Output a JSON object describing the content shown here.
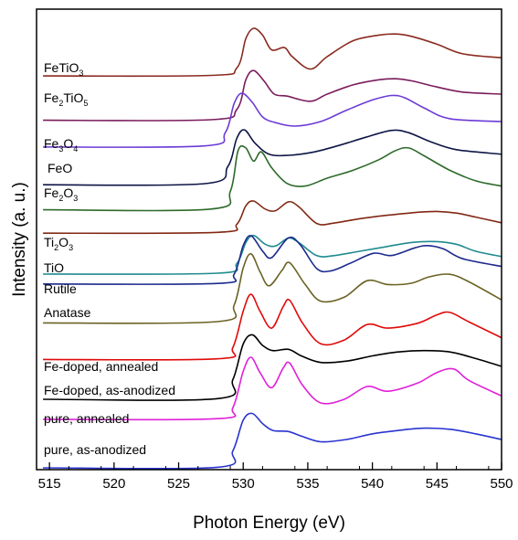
{
  "chart_data": {
    "type": "line",
    "title": "",
    "xlabel": "Photon Energy (eV)",
    "ylabel": "Intensity (a. u.)",
    "xlim": [
      514,
      550
    ],
    "x_ticks": [
      "515",
      "520",
      "525",
      "530",
      "535",
      "540",
      "545",
      "550"
    ],
    "x_tick_values": [
      515,
      520,
      525,
      530,
      535,
      540,
      545,
      550
    ],
    "y_ticks": "none",
    "grid": false,
    "legend": "inline labels at left of each curve",
    "series": [
      {
        "name": "FeTiO3",
        "label_base": "FeTiO",
        "label_sub": "3",
        "label_tail": "",
        "color": "#8a2a20",
        "x": [
          514.5,
          527.5,
          529.5,
          530.2,
          530.8,
          531.5,
          532.2,
          533.2,
          533.8,
          535.2,
          536.5,
          538.5,
          540.5,
          541.8,
          543,
          545,
          547,
          550
        ],
        "y": [
          0.16,
          0.17,
          0.3,
          0.82,
          1.0,
          0.88,
          0.62,
          0.66,
          0.5,
          0.28,
          0.5,
          0.78,
          0.88,
          0.9,
          0.86,
          0.72,
          0.55,
          0.48
        ]
      },
      {
        "name": "Fe2TiO5",
        "label_base": "Fe",
        "label_sub": "2",
        "label_tail": "TiO5",
        "color": "#7a1c5c",
        "x": [
          514.5,
          527.5,
          529.5,
          530.2,
          530.8,
          531.6,
          532.4,
          533.4,
          535.2,
          536.5,
          538.5,
          540.5,
          541.8,
          543,
          545,
          547,
          550
        ],
        "y": [
          -0.01,
          0.0,
          0.2,
          0.78,
          0.96,
          0.76,
          0.5,
          0.46,
          0.36,
          0.5,
          0.68,
          0.78,
          0.8,
          0.76,
          0.64,
          0.54,
          0.5
        ]
      },
      {
        "name": "Fe3O4",
        "label_base": "Fe",
        "label_sub": "3",
        "label_tail": "O4",
        "color": "#6b3ad6",
        "x": [
          514.5,
          527,
          528.6,
          529.3,
          529.9,
          530.7,
          531.5,
          532.5,
          534,
          536,
          538,
          540,
          541.5,
          542.5,
          544,
          546,
          550
        ],
        "y": [
          0.05,
          0.07,
          0.3,
          0.82,
          1.0,
          0.84,
          0.58,
          0.48,
          0.42,
          0.5,
          0.7,
          0.88,
          0.96,
          0.92,
          0.74,
          0.55,
          0.5
        ]
      },
      {
        "name": "FeO",
        "label_base": "FeO",
        "label_sub": "",
        "label_tail": "",
        "color": "#0d1545",
        "x": [
          514.5,
          527,
          528.8,
          529.5,
          530.1,
          530.9,
          532,
          533.5,
          535.5,
          537.5,
          539.5,
          541.5,
          542.8,
          544.5,
          546.5,
          550
        ],
        "y": [
          -0.02,
          0.0,
          0.3,
          0.8,
          0.95,
          0.72,
          0.52,
          0.5,
          0.56,
          0.68,
          0.82,
          0.94,
          0.9,
          0.74,
          0.6,
          0.52
        ]
      },
      {
        "name": "Fe2O3",
        "label_base": "Fe",
        "label_sub": "2",
        "label_tail": "O3",
        "color": "#2d6a2a",
        "x": [
          514.5,
          527.5,
          529,
          529.6,
          530.2,
          530.8,
          531.4,
          532.2,
          533.4,
          534.8,
          536.5,
          538.5,
          540.5,
          541.8,
          542.8,
          544,
          546,
          548,
          550
        ],
        "y": [
          0.02,
          0.03,
          0.3,
          0.92,
          0.96,
          0.76,
          0.9,
          0.66,
          0.42,
          0.38,
          0.5,
          0.62,
          0.78,
          0.92,
          0.96,
          0.84,
          0.62,
          0.46,
          0.38
        ]
      },
      {
        "name": "Ti2O3",
        "label_base": "Ti",
        "label_sub": "2",
        "label_tail": "O3",
        "color": "#822814",
        "x": [
          514.5,
          528,
          529.5,
          530.2,
          530.8,
          531.7,
          532.5,
          533.5,
          534.3,
          535.7,
          537,
          539,
          541,
          543.5,
          545,
          546.5,
          548,
          550
        ],
        "y": [
          0.2,
          0.22,
          0.42,
          0.88,
          1.0,
          0.8,
          0.76,
          0.98,
          0.86,
          0.44,
          0.45,
          0.56,
          0.64,
          0.72,
          0.74,
          0.7,
          0.6,
          0.46
        ]
      },
      {
        "name": "TiO",
        "label_base": "TiO",
        "label_sub": "",
        "label_tail": "",
        "color": "#1f8a8f",
        "x": [
          514.5,
          528,
          529.5,
          530.2,
          530.8,
          531.7,
          532.5,
          533.5,
          534.3,
          535.7,
          537,
          539,
          541,
          543,
          545,
          546.5,
          548,
          550
        ],
        "y": [
          -0.02,
          0.0,
          0.22,
          0.7,
          0.86,
          0.66,
          0.62,
          0.8,
          0.7,
          0.4,
          0.4,
          0.5,
          0.6,
          0.7,
          0.72,
          0.66,
          0.5,
          0.38
        ]
      },
      {
        "name": "Rutile",
        "label_base": "Rutile",
        "label_sub": "",
        "label_tail": "",
        "color": "#1c2a8c",
        "x": [
          514.5,
          528,
          529.3,
          530,
          530.6,
          531.5,
          532.2,
          533.5,
          534.4,
          535.7,
          536.8,
          538.3,
          540.1,
          541.5,
          543.3,
          544.3,
          545.5,
          547,
          550
        ],
        "y": [
          0.12,
          0.13,
          0.3,
          0.82,
          1.0,
          0.72,
          0.6,
          0.96,
          0.84,
          0.4,
          0.36,
          0.5,
          0.68,
          0.64,
          0.78,
          0.82,
          0.76,
          0.58,
          0.44
        ]
      },
      {
        "name": "Anatase",
        "label_base": "Anatase",
        "label_sub": "",
        "label_tail": "",
        "color": "#6b6224",
        "x": [
          514.5,
          528,
          529.3,
          530,
          530.6,
          531.3,
          532,
          533,
          533.6,
          534.8,
          536,
          537.8,
          539.6,
          541.2,
          543,
          544.4,
          546,
          547.5,
          550
        ],
        "y": [
          -0.02,
          0.0,
          0.26,
          0.84,
          1.06,
          0.78,
          0.56,
          0.8,
          0.92,
          0.58,
          0.32,
          0.38,
          0.64,
          0.58,
          0.6,
          0.7,
          0.74,
          0.62,
          0.34
        ]
      },
      {
        "name": "Fe-doped, annealed",
        "label_base": "Fe-doped, annealed",
        "label_sub": "",
        "label_tail": "",
        "color": "#e00a0a",
        "x": [
          514.5,
          528,
          529.2,
          530,
          530.6,
          531.3,
          532.2,
          533.1,
          533.6,
          534.6,
          536,
          537.8,
          539.6,
          541.2,
          543.5,
          545,
          546,
          547.5,
          550
        ],
        "y": [
          0.1,
          0.11,
          0.3,
          0.9,
          1.18,
          0.9,
          0.62,
          0.98,
          1.08,
          0.7,
          0.36,
          0.42,
          0.68,
          0.62,
          0.7,
          0.84,
          0.88,
          0.72,
          0.46
        ]
      },
      {
        "name": "Fe-doped, as-anodized",
        "label_base": "Fe-doped, as-anodized",
        "label_sub": "",
        "label_tail": "",
        "color": "#000000",
        "x": [
          514.5,
          528,
          529.2,
          530,
          530.7,
          531.5,
          532.3,
          533.5,
          534.5,
          536,
          538,
          540,
          542,
          544,
          546,
          548,
          550
        ],
        "y": [
          0.0,
          0.01,
          0.3,
          0.84,
          0.98,
          0.82,
          0.74,
          0.76,
          0.66,
          0.56,
          0.58,
          0.66,
          0.72,
          0.74,
          0.72,
          0.62,
          0.5
        ]
      },
      {
        "name": "pure, annealed",
        "label_base": "pure, annealed",
        "label_sub": "",
        "label_tail": "",
        "color": "#e020d8",
        "x": [
          514.5,
          528,
          529.2,
          530,
          530.6,
          531.3,
          532.2,
          533.1,
          533.6,
          534.6,
          536,
          537.8,
          539.6,
          541.2,
          543.5,
          545,
          546.3,
          547.5,
          550
        ],
        "y": [
          0.08,
          0.09,
          0.28,
          0.9,
          1.14,
          0.88,
          0.62,
          0.96,
          1.04,
          0.66,
          0.36,
          0.42,
          0.64,
          0.56,
          0.7,
          0.88,
          0.94,
          0.74,
          0.48
        ]
      },
      {
        "name": "pure, as-anodized",
        "label_base": "pure, as-anodized",
        "label_sub": "",
        "label_tail": "",
        "color": "#2a34d0",
        "x": [
          514.5,
          528,
          529.2,
          530,
          530.7,
          531.5,
          532.3,
          533.5,
          534.5,
          536,
          538,
          540,
          542,
          544,
          546,
          548,
          550
        ],
        "y": [
          0.0,
          0.01,
          0.3,
          0.84,
          0.96,
          0.78,
          0.66,
          0.64,
          0.56,
          0.46,
          0.5,
          0.6,
          0.66,
          0.7,
          0.68,
          0.6,
          0.5
        ]
      }
    ]
  }
}
